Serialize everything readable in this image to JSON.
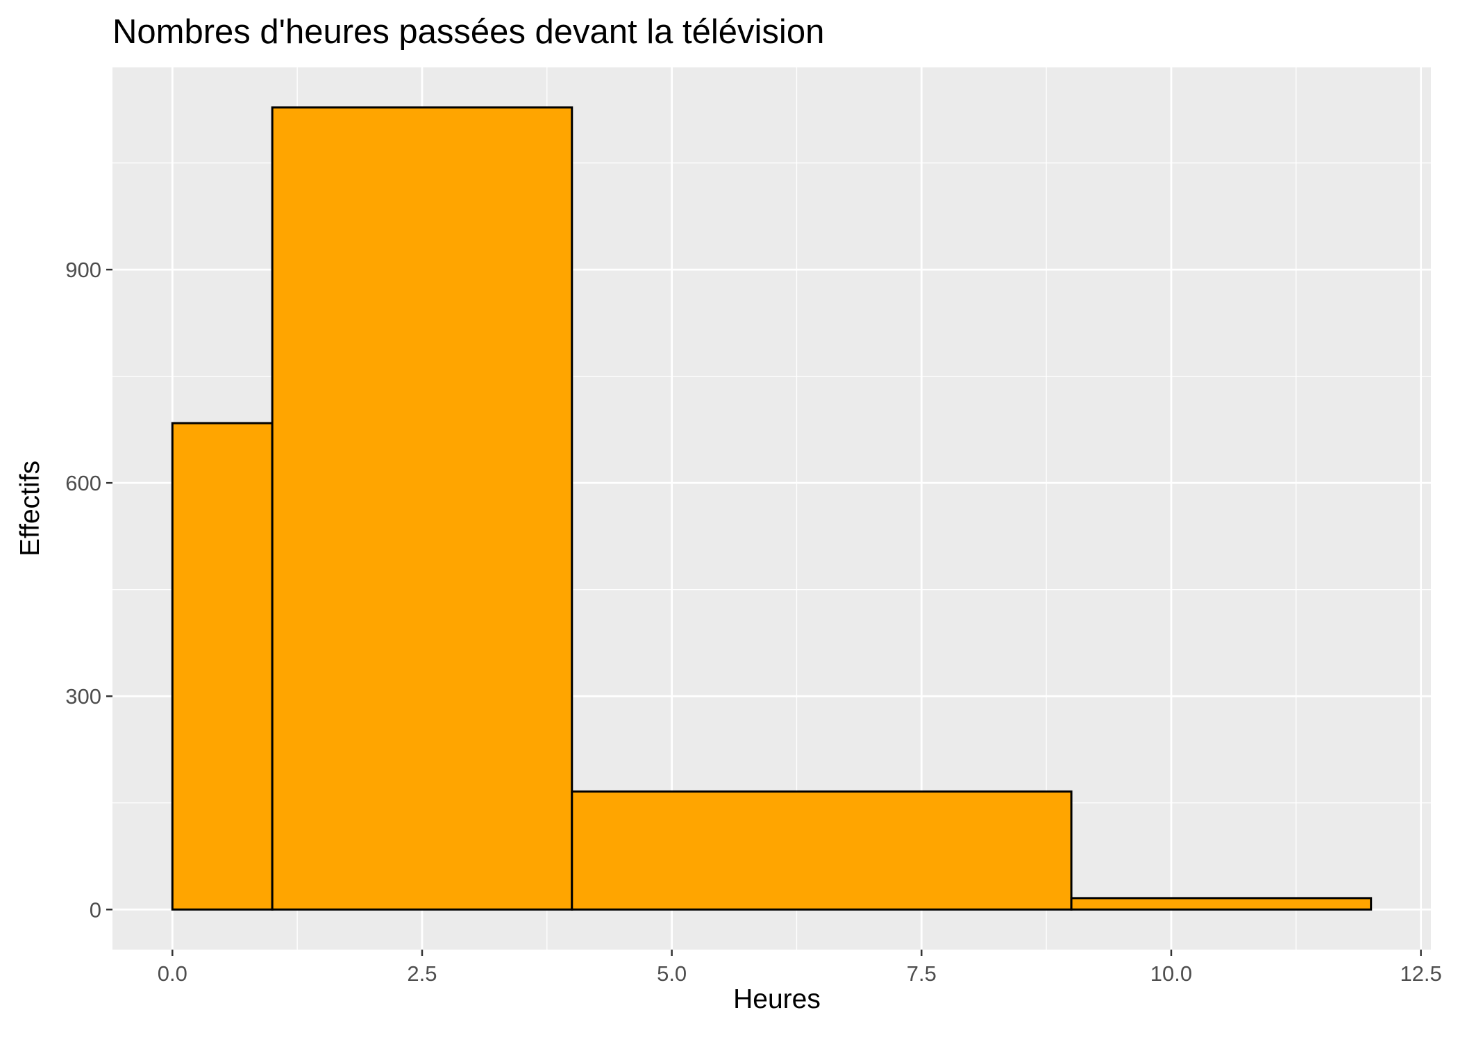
{
  "chart_data": {
    "type": "bar",
    "subtype": "histogram",
    "title": "Nombres d'heures passées devant la télévision",
    "xlabel": "Heures",
    "ylabel": "Effectifs",
    "bins": [
      {
        "x_start": 0,
        "x_end": 1,
        "count": 684
      },
      {
        "x_start": 1,
        "x_end": 4,
        "count": 1128
      },
      {
        "x_start": 4,
        "x_end": 9,
        "count": 166
      },
      {
        "x_start": 9,
        "x_end": 12,
        "count": 16
      }
    ],
    "x_ticks": [
      {
        "value": 0,
        "label": "0.0"
      },
      {
        "value": 2.5,
        "label": "2.5"
      },
      {
        "value": 5,
        "label": "5.0"
      },
      {
        "value": 7.5,
        "label": "7.5"
      },
      {
        "value": 10,
        "label": "10.0"
      },
      {
        "value": 12.5,
        "label": "12.5"
      }
    ],
    "y_ticks": [
      {
        "value": 0,
        "label": "0"
      },
      {
        "value": 300,
        "label": "300"
      },
      {
        "value": 600,
        "label": "600"
      },
      {
        "value": 900,
        "label": "900"
      }
    ],
    "xlim": [
      -0.6,
      12.6
    ],
    "ylim": [
      -56.4,
      1184.4
    ],
    "grid": true,
    "colors": {
      "fill": "#FFA500",
      "outline": "#000000",
      "panel_background": "#EBEBEB",
      "grid": "#FFFFFF"
    }
  }
}
